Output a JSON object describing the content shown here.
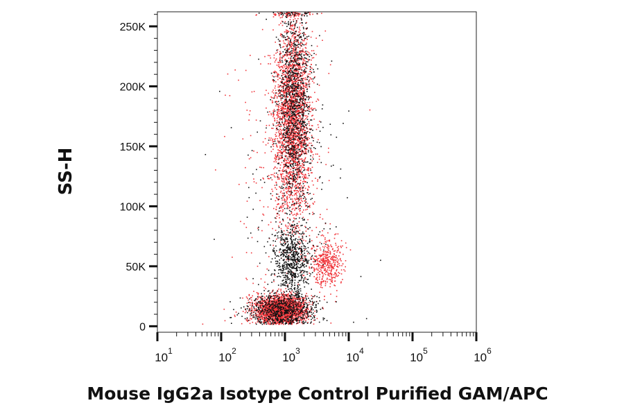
{
  "chart_data": {
    "type": "scatter",
    "title": "",
    "xlabel": "Mouse IgG2a Isotype Control Purified GAM/APC",
    "ylabel": "SS-H",
    "x_scale": "log",
    "xlim": [
      10,
      1000000
    ],
    "ylim": [
      -5000,
      262144
    ],
    "x_ticks": [
      {
        "base": "10",
        "exp": "1",
        "value": 10
      },
      {
        "base": "10",
        "exp": "2",
        "value": 100
      },
      {
        "base": "10",
        "exp": "3",
        "value": 1000
      },
      {
        "base": "10",
        "exp": "4",
        "value": 10000
      },
      {
        "base": "10",
        "exp": "5",
        "value": 100000
      },
      {
        "base": "10",
        "exp": "6",
        "value": 1000000
      }
    ],
    "y_ticks": [
      {
        "label": "0",
        "value": 0
      },
      {
        "label": "50K",
        "value": 50000
      },
      {
        "label": "100K",
        "value": 100000
      },
      {
        "label": "150K",
        "value": 150000
      },
      {
        "label": "200K",
        "value": 200000
      },
      {
        "label": "250K",
        "value": 250000
      }
    ],
    "grid": false,
    "legend": "none",
    "series": [
      {
        "color": "#f0353a",
        "clusters": [
          {
            "x_center": 1300,
            "x_log_sd": 0.15,
            "y_center": 175000,
            "y_sd": 45000,
            "count": 2600
          },
          {
            "x_center": 850,
            "x_log_sd": 0.2,
            "y_center": 14000,
            "y_sd": 6000,
            "count": 2200
          },
          {
            "x_center": 4500,
            "x_log_sd": 0.13,
            "y_center": 52000,
            "y_sd": 10000,
            "count": 420
          },
          {
            "x_center": 1000,
            "x_log_sd": 0.45,
            "y_center": 110000,
            "y_sd": 70000,
            "count": 260
          }
        ]
      },
      {
        "color": "#111111",
        "clusters": [
          {
            "x_center": 1400,
            "x_log_sd": 0.13,
            "y_center": 185000,
            "y_sd": 42000,
            "count": 1100
          },
          {
            "x_center": 1300,
            "x_log_sd": 0.14,
            "y_center": 55000,
            "y_sd": 14000,
            "count": 700
          },
          {
            "x_center": 900,
            "x_log_sd": 0.28,
            "y_center": 14000,
            "y_sd": 8000,
            "count": 700
          },
          {
            "x_center": 1200,
            "x_log_sd": 0.5,
            "y_center": 100000,
            "y_sd": 75000,
            "count": 160
          }
        ]
      }
    ]
  }
}
